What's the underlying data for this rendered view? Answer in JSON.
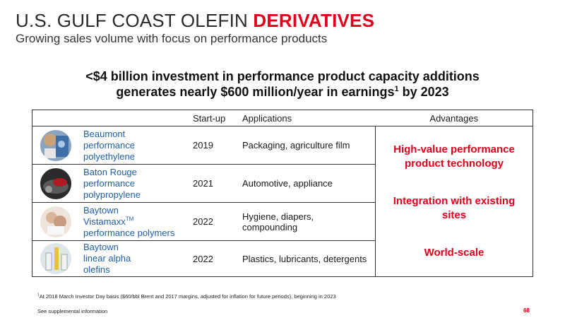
{
  "header": {
    "title_main": "U.S. GULF COAST OLEFIN ",
    "title_accent": "DERIVATIVES",
    "subtitle": "Growing sales volume with focus on performance products"
  },
  "headline": {
    "line1": "<$4 billion investment in performance product capacity additions",
    "line2_a": "generates nearly $600 million/year in earnings",
    "line2_sup": "1",
    "line2_b": " by 2023"
  },
  "table": {
    "headers": {
      "startup": "Start-up",
      "applications": "Applications",
      "advantages": "Advantages"
    },
    "rows": [
      {
        "product_lines": [
          "Beaumont",
          "performance",
          "polyethylene"
        ],
        "startup": "2019",
        "applications": "Packaging, agriculture film"
      },
      {
        "product_lines": [
          "Baton Rouge",
          "performance",
          "polypropylene"
        ],
        "startup": "2021",
        "applications": "Automotive, appliance"
      },
      {
        "product_lines": [
          "Baytown",
          "Vistamaxx",
          "performance polymers"
        ],
        "trademark": "TM",
        "startup": "2022",
        "applications": "Hygiene, diapers, compounding"
      },
      {
        "product_lines": [
          "Baytown",
          "linear alpha",
          "olefins"
        ],
        "startup": "2022",
        "applications": "Plastics, lubricants, detergents"
      }
    ],
    "advantages": [
      "High-value performance product technology",
      "Integration with existing sites",
      "World-scale"
    ]
  },
  "footer": {
    "footnote_sup": "1",
    "footnote": "At 2018 March Investor Day basis ($60/bbl Brent and 2017 margins, adjusted for inflation for future periods), beginning in 2023",
    "supplemental": "See supplemental information",
    "page_number": "68"
  },
  "colors": {
    "accent": "#e0001b",
    "product_link": "#1f5fa8"
  }
}
